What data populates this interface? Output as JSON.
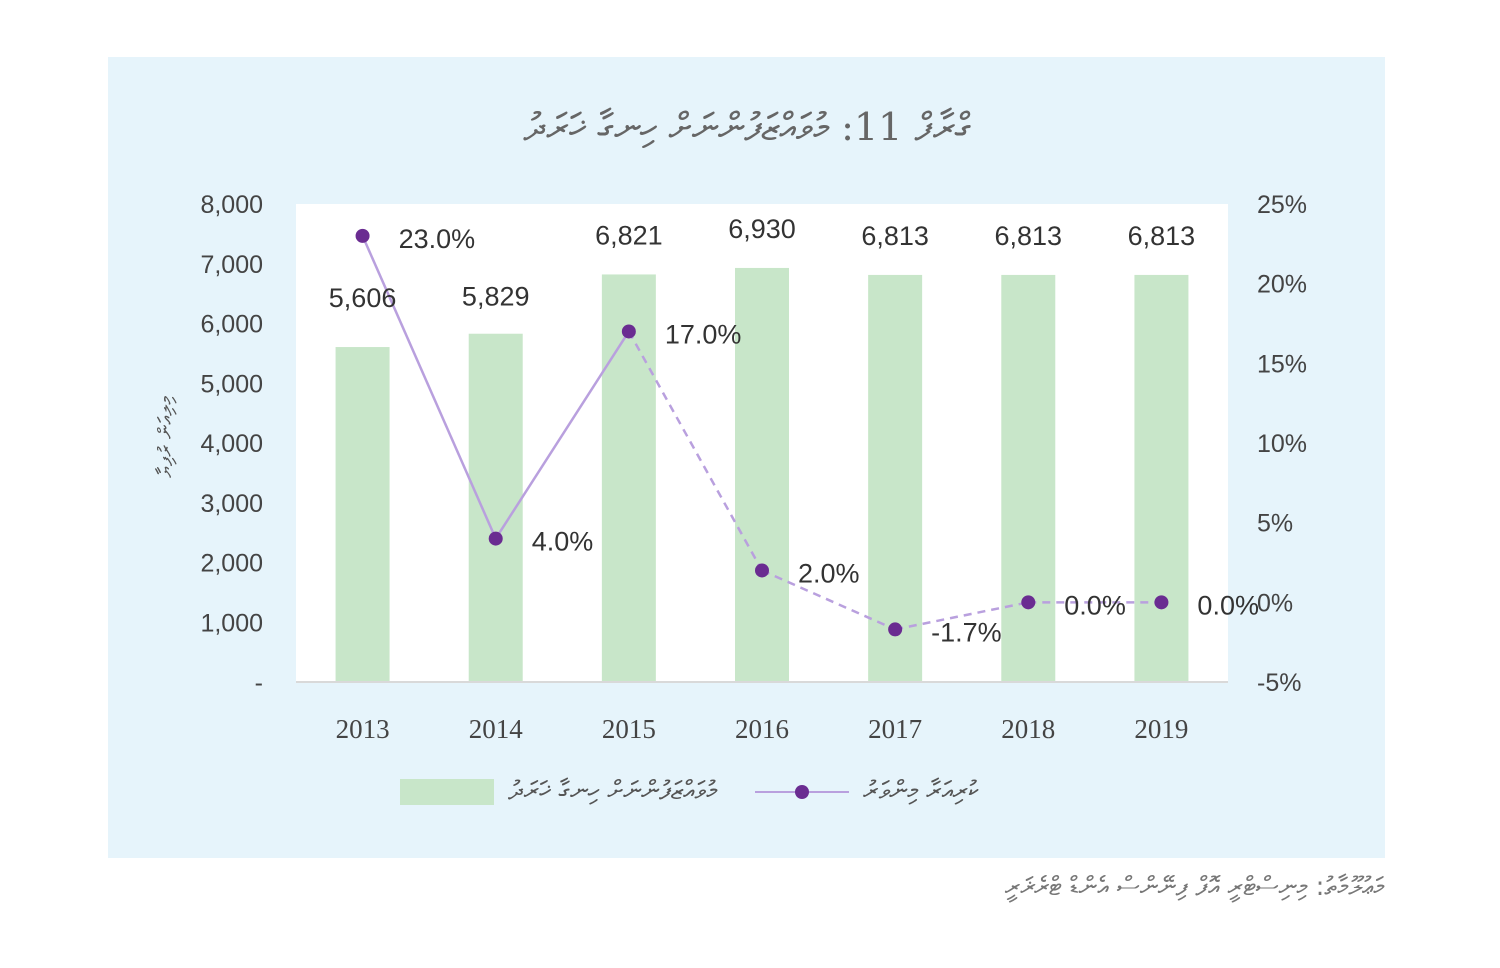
{
  "title": "ގްރާފް 11: މުވައްޒަފުންނަށް ހިނގާ ޚަރަދު",
  "source": "މަޢުލޫމާތު: މިނިސްޓްރީ އޮފް ފިނޭންސް އެންޑް ޓްރެޜަރީ",
  "chart_data": {
    "type": "bar",
    "title": "ގްރާފް 11: މުވައްޒަފުންނަށް ހިނގާ ޚަރަދު",
    "categories": [
      "2013",
      "2014",
      "2015",
      "2016",
      "2017",
      "2018",
      "2019"
    ],
    "ylabel": "މިލިއަން ރުފިޔާ",
    "ylim": [
      0,
      8000
    ],
    "y_ticks": [
      "-",
      "1,000",
      "2,000",
      "3,000",
      "4,000",
      "5,000",
      "6,000",
      "7,000",
      "8,000"
    ],
    "y2lim": [
      -5,
      25
    ],
    "y2_ticks": [
      "-5%",
      "0%",
      "5%",
      "10%",
      "15%",
      "20%",
      "25%"
    ],
    "grid": false,
    "legend": "bottom",
    "series": [
      {
        "name": "މުވައްޒަފުންނަށް ހިނގާ ޚަރަދު",
        "type": "bar",
        "axis": "left",
        "values": [
          5606,
          5829,
          6821,
          6930,
          6813,
          6813,
          6813
        ],
        "labels": [
          "5,606",
          "5,829",
          "6,821",
          "6,930",
          "6,813",
          "6,813",
          "6,813"
        ],
        "color": "#c8e6c9"
      },
      {
        "name": "ކުރިއަރާ މިންވަރު",
        "type": "line",
        "axis": "right",
        "values": [
          23.0,
          4.0,
          17.0,
          2.0,
          -1.7,
          0.0,
          0.0
        ],
        "labels": [
          "23.0%",
          "4.0%",
          "17.0%",
          "2.0%",
          "-1.7%",
          "0.0%",
          "0.0%"
        ],
        "color": "#6a2c91",
        "line_color": "#b9a0de",
        "dashed_from": "2015"
      }
    ]
  }
}
